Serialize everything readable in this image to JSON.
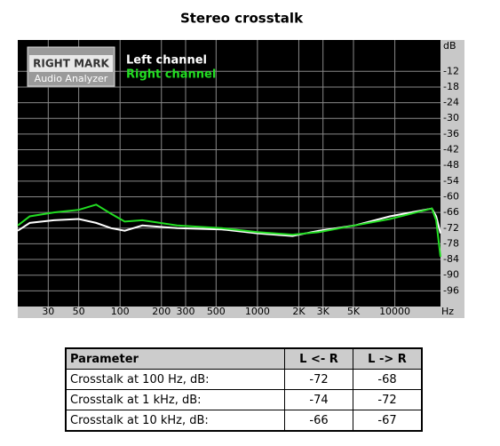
{
  "chart_data": {
    "type": "line",
    "title": "Stereo crosstalk",
    "logo": {
      "line1": "RIGHT MARK",
      "line2": "Audio Analyzer"
    },
    "x_label": "Hz",
    "y_label": "dB",
    "x_scale": "log",
    "grid": true,
    "xlim": [
      18,
      21500
    ],
    "ylim": [
      -102,
      0
    ],
    "xticks": [
      30,
      50,
      100,
      200,
      300,
      500,
      1000,
      {
        "value": 2000,
        "label": "2K"
      },
      {
        "value": 3000,
        "label": "3K"
      },
      {
        "value": 5000,
        "label": "5K"
      },
      10000
    ],
    "yticks": [
      -12,
      -18,
      -24,
      -30,
      -36,
      -42,
      -48,
      -54,
      -60,
      -66,
      -72,
      -78,
      -84,
      -90,
      -96
    ],
    "x": [
      18,
      22,
      33,
      50,
      67,
      86,
      108,
      145,
      260,
      550,
      1000,
      1800,
      2800,
      5100,
      9200,
      18600,
      20000,
      21500
    ],
    "series": [
      {
        "name": "Left channel",
        "color": "#ffffff",
        "values": [
          -73,
          -70,
          -69,
          -68.5,
          -70,
          -72,
          -73,
          -71,
          -72,
          -72.5,
          -74,
          -75,
          -73,
          -71,
          -67.5,
          -64.5,
          -67.5,
          -74
        ]
      },
      {
        "name": "Right channel",
        "color": "#22dd22",
        "values": [
          -71,
          -67.5,
          -66,
          -65,
          -63,
          -66.5,
          -69.5,
          -69,
          -71,
          -72,
          -73.5,
          -74.5,
          -73.5,
          -71,
          -68.5,
          -64.5,
          -69,
          -83
        ]
      }
    ]
  },
  "table": {
    "columns": [
      "Parameter",
      "L <- R",
      "L -> R"
    ],
    "rows": [
      [
        "Crosstalk at 100 Hz, dB:",
        -72,
        -68
      ],
      [
        "Crosstalk at 1 kHz, dB:",
        -74,
        -72
      ],
      [
        "Crosstalk at 10 kHz, dB:",
        -66,
        -67
      ]
    ]
  }
}
